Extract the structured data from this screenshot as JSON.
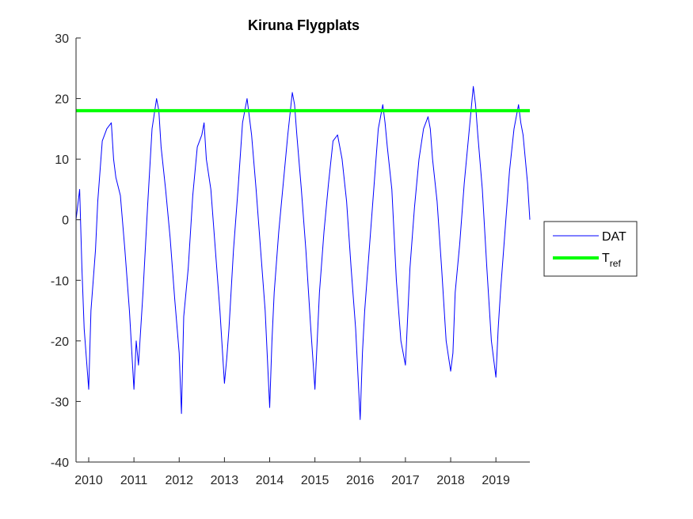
{
  "chart_data": {
    "type": "line",
    "title": "Kiruna Flygplats",
    "xlabel": "",
    "ylabel": "",
    "xlim": [
      2009.72,
      2019.75
    ],
    "ylim": [
      -40,
      30
    ],
    "x_ticks": [
      2010,
      2011,
      2012,
      2013,
      2014,
      2015,
      2016,
      2017,
      2018,
      2019
    ],
    "x_tick_labels": [
      "2010",
      "2011",
      "2012",
      "2013",
      "2014",
      "2015",
      "2016",
      "2017",
      "2018",
      "2019"
    ],
    "y_ticks": [
      -40,
      -30,
      -20,
      -10,
      0,
      10,
      20,
      30
    ],
    "y_tick_labels": [
      "-40",
      "-30",
      "-20",
      "-10",
      "0",
      "10",
      "20",
      "30"
    ],
    "grid": false,
    "legend_position": "right",
    "series": [
      {
        "name": "DAT",
        "color": "#0000ff",
        "x": [
          2009.72,
          2009.8,
          2009.85,
          2009.9,
          2009.95,
          2010.0,
          2010.05,
          2010.1,
          2010.15,
          2010.2,
          2010.3,
          2010.4,
          2010.5,
          2010.55,
          2010.6,
          2010.7,
          2010.8,
          2010.9,
          2011.0,
          2011.05,
          2011.1,
          2011.2,
          2011.3,
          2011.4,
          2011.5,
          2011.55,
          2011.6,
          2011.7,
          2011.8,
          2011.9,
          2012.0,
          2012.05,
          2012.1,
          2012.2,
          2012.3,
          2012.4,
          2012.5,
          2012.55,
          2012.6,
          2012.7,
          2012.8,
          2012.9,
          2013.0,
          2013.05,
          2013.1,
          2013.2,
          2013.3,
          2013.4,
          2013.5,
          2013.55,
          2013.6,
          2013.7,
          2013.8,
          2013.9,
          2014.0,
          2014.05,
          2014.1,
          2014.2,
          2014.3,
          2014.4,
          2014.5,
          2014.55,
          2014.6,
          2014.7,
          2014.8,
          2014.9,
          2015.0,
          2015.05,
          2015.1,
          2015.2,
          2015.3,
          2015.4,
          2015.5,
          2015.55,
          2015.6,
          2015.7,
          2015.8,
          2015.9,
          2016.0,
          2016.05,
          2016.1,
          2016.2,
          2016.3,
          2016.4,
          2016.5,
          2016.55,
          2016.6,
          2016.7,
          2016.8,
          2016.9,
          2017.0,
          2017.05,
          2017.1,
          2017.2,
          2017.3,
          2017.4,
          2017.5,
          2017.55,
          2017.6,
          2017.7,
          2017.8,
          2017.9,
          2018.0,
          2018.05,
          2018.1,
          2018.2,
          2018.3,
          2018.4,
          2018.5,
          2018.55,
          2018.6,
          2018.7,
          2018.8,
          2018.9,
          2019.0,
          2019.05,
          2019.1,
          2019.2,
          2019.3,
          2019.4,
          2019.5,
          2019.55,
          2019.6,
          2019.7,
          2019.75
        ],
        "y": [
          0,
          5,
          -8,
          -18,
          -23,
          -28,
          -15,
          -10,
          -5,
          3,
          13,
          15,
          16,
          10,
          7,
          4,
          -5,
          -15,
          -28,
          -20,
          -24,
          -12,
          2,
          15,
          20,
          18,
          12,
          5,
          -3,
          -13,
          -22,
          -32,
          -16,
          -8,
          4,
          12,
          14,
          16,
          10,
          5,
          -5,
          -15,
          -27,
          -23,
          -18,
          -5,
          5,
          16,
          20,
          17,
          14,
          5,
          -5,
          -15,
          -31,
          -20,
          -12,
          -2,
          6,
          14,
          21,
          19,
          14,
          5,
          -5,
          -17,
          -28,
          -20,
          -12,
          -2,
          6,
          13,
          14,
          12,
          10,
          3,
          -8,
          -18,
          -33,
          -22,
          -15,
          -5,
          5,
          15,
          19,
          16,
          12,
          5,
          -10,
          -20,
          -24,
          -16,
          -8,
          2,
          10,
          15,
          17,
          15,
          10,
          3,
          -8,
          -20,
          -25,
          -22,
          -12,
          -4,
          6,
          14,
          22,
          19,
          14,
          5,
          -8,
          -20,
          -26,
          -18,
          -12,
          -2,
          8,
          15,
          19,
          16,
          14,
          6,
          0
        ]
      },
      {
        "name": "Tref",
        "name_main": "T",
        "name_sub": "ref",
        "color": "#00ff00",
        "x": [
          2009.72,
          2019.75
        ],
        "y": [
          18,
          18
        ]
      }
    ],
    "legend_labels": {
      "dat": "DAT",
      "tref_main": "T",
      "tref_sub": "ref"
    }
  }
}
